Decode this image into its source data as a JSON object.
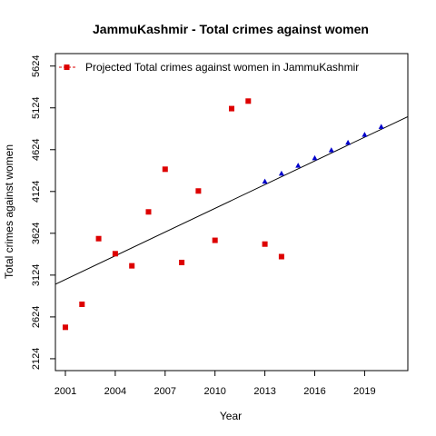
{
  "chart_data": {
    "type": "scatter",
    "title": "JammuKashmir  -  Total crimes against women",
    "xlabel": "Year",
    "ylabel": "Total crimes against women",
    "xlim": [
      2000.4,
      2021.6
    ],
    "ylim": [
      1982,
      5773
    ],
    "x_ticks": [
      2001,
      2004,
      2007,
      2010,
      2013,
      2016,
      2019
    ],
    "y_ticks": [
      2124,
      2624,
      3124,
      3624,
      4124,
      4624,
      5124,
      5624
    ],
    "legend": {
      "label": "Projected  Total crimes against women  in  JammuKashmir",
      "placement": "top-left"
    },
    "series": [
      {
        "role": "actual",
        "marker": "square",
        "color": "#dd0000",
        "x": [
          2001,
          2002,
          2003,
          2004,
          2005,
          2006,
          2007,
          2008,
          2009,
          2010,
          2011,
          2012,
          2013,
          2014
        ],
        "y": [
          2500,
          2775,
          3560,
          3380,
          3235,
          3880,
          4390,
          3275,
          4130,
          3540,
          5115,
          5205,
          3495,
          3345
        ]
      },
      {
        "role": "projected",
        "marker": "triangle",
        "color": "#0000cc",
        "x": [
          2013,
          2014,
          2015,
          2016,
          2017,
          2018,
          2019,
          2020
        ],
        "y": [
          4240,
          4335,
          4430,
          4520,
          4615,
          4705,
          4800,
          4895
        ]
      }
    ],
    "trend_line": {
      "color": "#000000",
      "x": [
        2000.4,
        2021.6
      ],
      "y": [
        3015,
        5019
      ]
    }
  }
}
